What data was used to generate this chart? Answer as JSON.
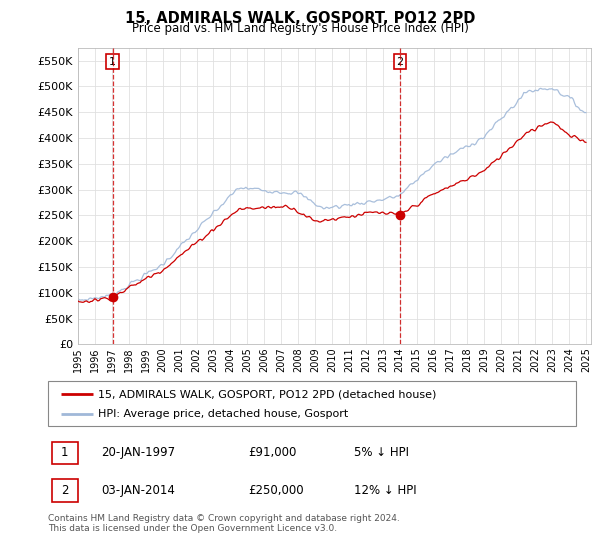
{
  "title": "15, ADMIRALS WALK, GOSPORT, PO12 2PD",
  "subtitle": "Price paid vs. HM Land Registry's House Price Index (HPI)",
  "ylim": [
    0,
    575000
  ],
  "yticks": [
    0,
    50000,
    100000,
    150000,
    200000,
    250000,
    300000,
    350000,
    400000,
    450000,
    500000,
    550000
  ],
  "ytick_labels": [
    "£0",
    "£50K",
    "£100K",
    "£150K",
    "£200K",
    "£250K",
    "£300K",
    "£350K",
    "£400K",
    "£450K",
    "£500K",
    "£550K"
  ],
  "xtick_years": [
    1995,
    1996,
    1997,
    1998,
    1999,
    2000,
    2001,
    2002,
    2003,
    2004,
    2005,
    2006,
    2007,
    2008,
    2009,
    2010,
    2011,
    2012,
    2013,
    2014,
    2015,
    2016,
    2017,
    2018,
    2019,
    2020,
    2021,
    2022,
    2023,
    2024,
    2025
  ],
  "sale1": {
    "year": 1997.05,
    "price": 91000,
    "label": "1"
  },
  "sale2": {
    "year": 2014.01,
    "price": 250000,
    "label": "2"
  },
  "legend_line1": "15, ADMIRALS WALK, GOSPORT, PO12 2PD (detached house)",
  "legend_line2": "HPI: Average price, detached house, Gosport",
  "annotation1_date": "20-JAN-1997",
  "annotation1_price": "£91,000",
  "annotation1_hpi": "5% ↓ HPI",
  "annotation2_date": "03-JAN-2014",
  "annotation2_price": "£250,000",
  "annotation2_hpi": "12% ↓ HPI",
  "footer": "Contains HM Land Registry data © Crown copyright and database right 2024.\nThis data is licensed under the Open Government Licence v3.0.",
  "red_color": "#cc0000",
  "blue_color": "#a0b8d8",
  "background_color": "#ffffff",
  "grid_color": "#e0e0e0"
}
